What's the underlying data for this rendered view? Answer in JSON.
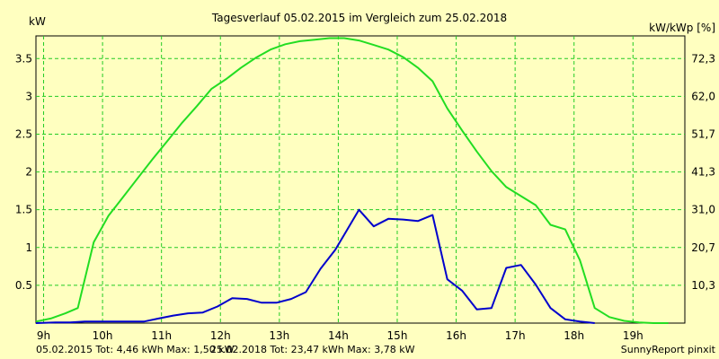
{
  "chart_data": {
    "type": "line",
    "title": "Tagesverlauf 05.02.2015 im Vergleich zum 25.02.2018",
    "ylabel": "kW",
    "y2label": "kW/kWp [%]",
    "xlim": [
      8.87,
      19.88
    ],
    "ylim": [
      0,
      3.8
    ],
    "x_ticks": [
      {
        "value": 9,
        "label": "9h"
      },
      {
        "value": 10,
        "label": "10h"
      },
      {
        "value": 11,
        "label": "11h"
      },
      {
        "value": 12,
        "label": "12h"
      },
      {
        "value": 13,
        "label": "13h"
      },
      {
        "value": 14,
        "label": "14h"
      },
      {
        "value": 15,
        "label": "15h"
      },
      {
        "value": 16,
        "label": "16h"
      },
      {
        "value": 17,
        "label": "17h"
      },
      {
        "value": 18,
        "label": "18h"
      },
      {
        "value": 19,
        "label": "19h"
      }
    ],
    "y_ticks": [
      {
        "value": 0.5,
        "label": "0.5"
      },
      {
        "value": 1,
        "label": "1"
      },
      {
        "value": 1.5,
        "label": "1.5"
      },
      {
        "value": 2,
        "label": "2"
      },
      {
        "value": 2.5,
        "label": "2.5"
      },
      {
        "value": 3,
        "label": "3"
      },
      {
        "value": 3.5,
        "label": "3.5"
      }
    ],
    "y2_ticks": [
      {
        "value": 0.5,
        "label": "10,3"
      },
      {
        "value": 1,
        "label": "20,7"
      },
      {
        "value": 1.5,
        "label": "31,0"
      },
      {
        "value": 2,
        "label": "41,3"
      },
      {
        "value": 2.5,
        "label": "51,7"
      },
      {
        "value": 3,
        "label": "62,0"
      },
      {
        "value": 3.5,
        "label": "72,3"
      }
    ],
    "grid": true,
    "series": [
      {
        "name": "25.02.2018",
        "color": "#22dd22",
        "x": [
          8.87,
          9.12,
          9.37,
          9.58,
          9.85,
          10.1,
          10.35,
          10.6,
          10.85,
          11.1,
          11.35,
          11.6,
          11.85,
          12.1,
          12.35,
          12.6,
          12.85,
          13.1,
          13.35,
          13.6,
          13.85,
          14.1,
          14.35,
          14.6,
          14.85,
          15.1,
          15.35,
          15.6,
          15.85,
          16.1,
          16.35,
          16.6,
          16.85,
          17.1,
          17.35,
          17.6,
          17.85,
          18.1,
          18.35,
          18.6,
          18.85,
          19.1,
          19.35,
          19.6
        ],
        "values": [
          0.02,
          0.06,
          0.13,
          0.2,
          1.07,
          1.42,
          1.67,
          1.92,
          2.17,
          2.41,
          2.65,
          2.87,
          3.1,
          3.23,
          3.38,
          3.51,
          3.62,
          3.69,
          3.73,
          3.75,
          3.77,
          3.77,
          3.74,
          3.68,
          3.62,
          3.52,
          3.38,
          3.2,
          2.84,
          2.55,
          2.27,
          2.01,
          1.8,
          1.68,
          1.56,
          1.3,
          1.24,
          0.83,
          0.2,
          0.08,
          0.03,
          0.01,
          0.0,
          0.0
        ]
      },
      {
        "name": "05.02.2015",
        "color": "#0000cc",
        "x": [
          8.87,
          9.2,
          9.45,
          9.7,
          9.95,
          10.2,
          10.45,
          10.7,
          10.95,
          11.2,
          11.45,
          11.7,
          11.95,
          12.2,
          12.45,
          12.7,
          12.95,
          13.2,
          13.45,
          13.7,
          13.95,
          14.2,
          14.35,
          14.6,
          14.85,
          15.1,
          15.35,
          15.6,
          15.85,
          16.1,
          16.35,
          16.6,
          16.85,
          17.1,
          17.35,
          17.6,
          17.85,
          18.1,
          18.35
        ],
        "values": [
          0.0,
          0.01,
          0.01,
          0.02,
          0.02,
          0.02,
          0.02,
          0.02,
          0.06,
          0.1,
          0.13,
          0.14,
          0.22,
          0.33,
          0.32,
          0.27,
          0.27,
          0.32,
          0.41,
          0.72,
          0.97,
          1.3,
          1.5,
          1.28,
          1.38,
          1.37,
          1.35,
          1.43,
          0.58,
          0.43,
          0.18,
          0.2,
          0.73,
          0.77,
          0.51,
          0.2,
          0.05,
          0.02,
          0.0
        ]
      }
    ]
  },
  "footer": {
    "info_2015": "05.02.2015 Tot: 4,46 kWh Max: 1,50 kW",
    "info_2018": "25.02.2018 Tot: 23,47 kWh Max: 3,78 kW",
    "credit": "SunnyReport pinxit"
  },
  "colors": {
    "background": "#ffffc0",
    "grid": "#22cc22",
    "series_2018": "#22dd22",
    "series_2015": "#0000cc"
  }
}
